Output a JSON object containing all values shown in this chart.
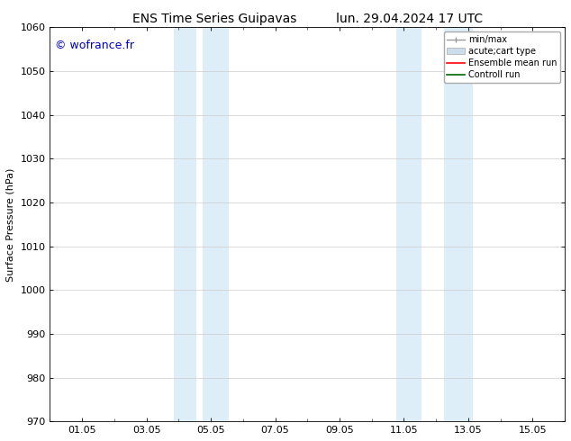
{
  "title_left": "ENS Time Series Guipavas",
  "title_right": "lun. 29.04.2024 17 UTC",
  "ylabel": "Surface Pressure (hPa)",
  "ylim": [
    970,
    1060
  ],
  "yticks": [
    970,
    980,
    990,
    1000,
    1010,
    1020,
    1030,
    1040,
    1050,
    1060
  ],
  "xlim": [
    0,
    16
  ],
  "xtick_positions": [
    1,
    3,
    5,
    7,
    9,
    11,
    13,
    15
  ],
  "xtick_labels": [
    "01.05",
    "03.05",
    "05.05",
    "07.05",
    "09.05",
    "11.05",
    "13.05",
    "15.05"
  ],
  "watermark": "© wofrance.fr",
  "watermark_color": "#0000cc",
  "background_color": "#ffffff",
  "plot_bg_color": "#ffffff",
  "shaded_bands": [
    {
      "xmin": 3.85,
      "xmax": 4.55,
      "color": "#deeef8"
    },
    {
      "xmin": 4.75,
      "xmax": 5.55,
      "color": "#deeef8"
    },
    {
      "xmin": 10.75,
      "xmax": 11.55,
      "color": "#deeef8"
    },
    {
      "xmin": 12.25,
      "xmax": 13.15,
      "color": "#deeef8"
    }
  ],
  "grid_color": "#cccccc",
  "font_size": 8,
  "title_font_size": 10,
  "legend_font_size": 7
}
